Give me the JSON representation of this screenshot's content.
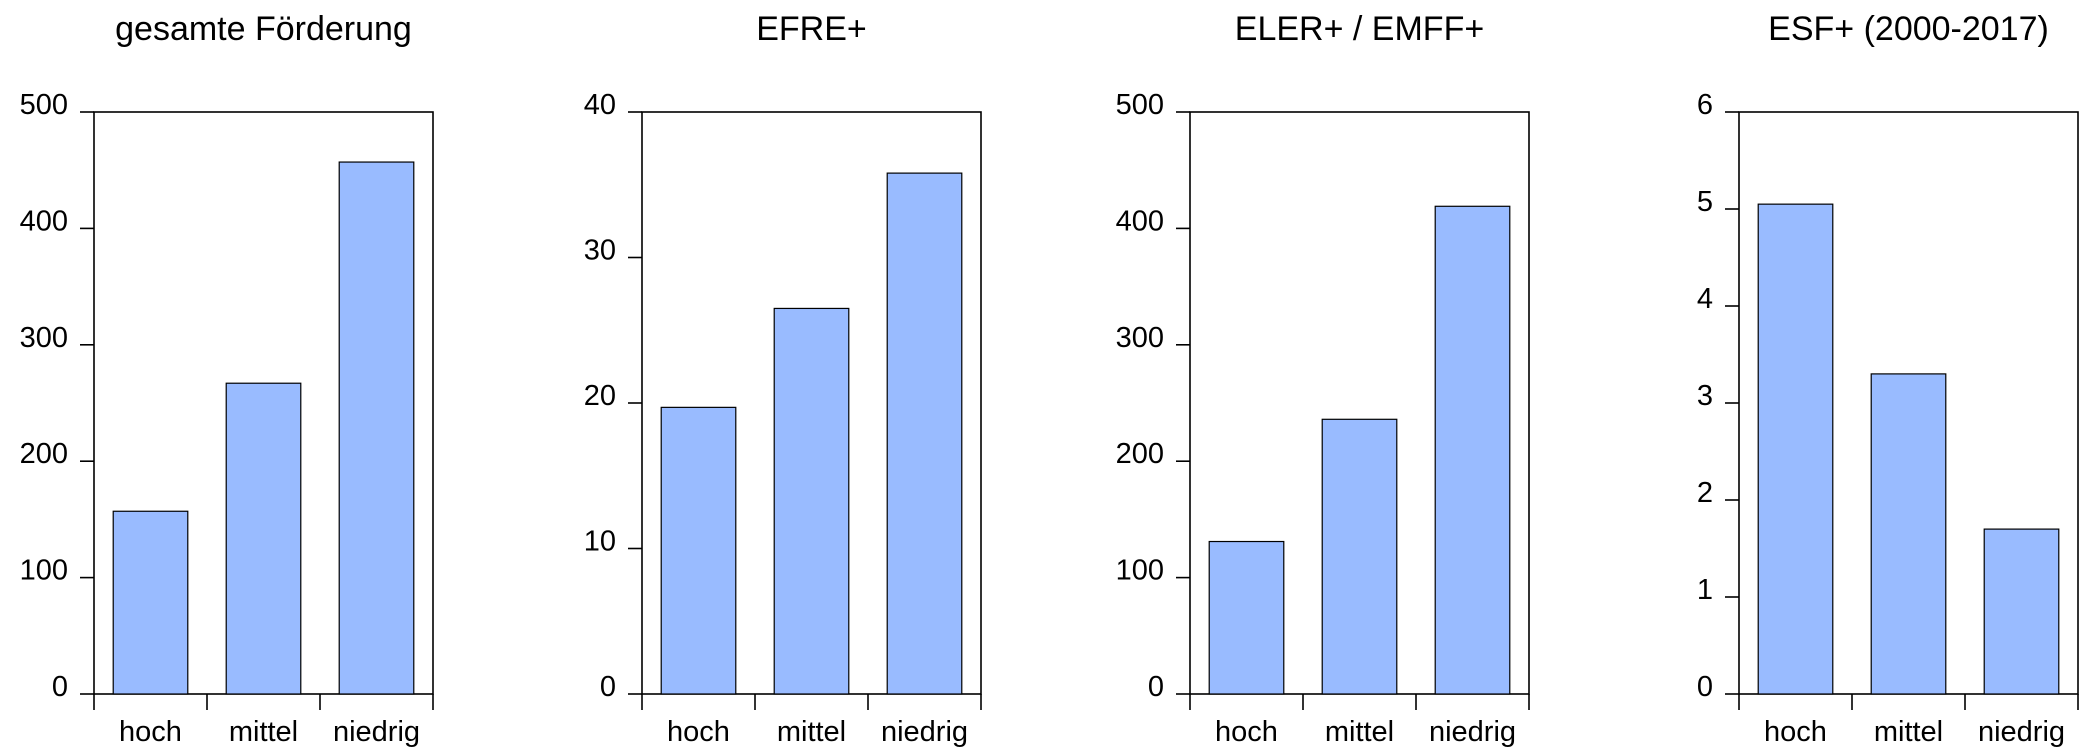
{
  "chart_data": [
    {
      "type": "bar",
      "title": "gesamte Förderung",
      "categories": [
        "hoch",
        "mittel",
        "niedrig"
      ],
      "values": [
        157,
        267,
        457
      ],
      "ylim": [
        0,
        500
      ],
      "yticks": [
        0,
        100,
        200,
        300,
        400,
        500
      ],
      "xlabel": "",
      "ylabel": "",
      "bar_color": "#99BBFF",
      "grid": false,
      "legend": "none"
    },
    {
      "type": "bar",
      "title": "EFRE+",
      "categories": [
        "hoch",
        "mittel",
        "niedrig"
      ],
      "values": [
        19.7,
        26.5,
        35.8
      ],
      "ylim": [
        0,
        40
      ],
      "yticks": [
        0,
        10,
        20,
        30,
        40
      ],
      "xlabel": "",
      "ylabel": "",
      "bar_color": "#99BBFF",
      "grid": false,
      "legend": "none"
    },
    {
      "type": "bar",
      "title": "ELER+ / EMFF+",
      "categories": [
        "hoch",
        "mittel",
        "niedrig"
      ],
      "values": [
        131,
        236,
        419
      ],
      "ylim": [
        0,
        500
      ],
      "yticks": [
        0,
        100,
        200,
        300,
        400,
        500
      ],
      "xlabel": "",
      "ylabel": "",
      "bar_color": "#99BBFF",
      "grid": false,
      "legend": "none"
    },
    {
      "type": "bar",
      "title": "ESF+ (2000-2017)",
      "categories": [
        "hoch",
        "mittel",
        "niedrig"
      ],
      "values": [
        5.05,
        3.3,
        1.7
      ],
      "ylim": [
        0,
        6
      ],
      "yticks": [
        0,
        1,
        2,
        3,
        4,
        5,
        6
      ],
      "xlabel": "",
      "ylabel": "",
      "bar_color": "#99BBFF",
      "grid": false,
      "legend": "none"
    }
  ]
}
